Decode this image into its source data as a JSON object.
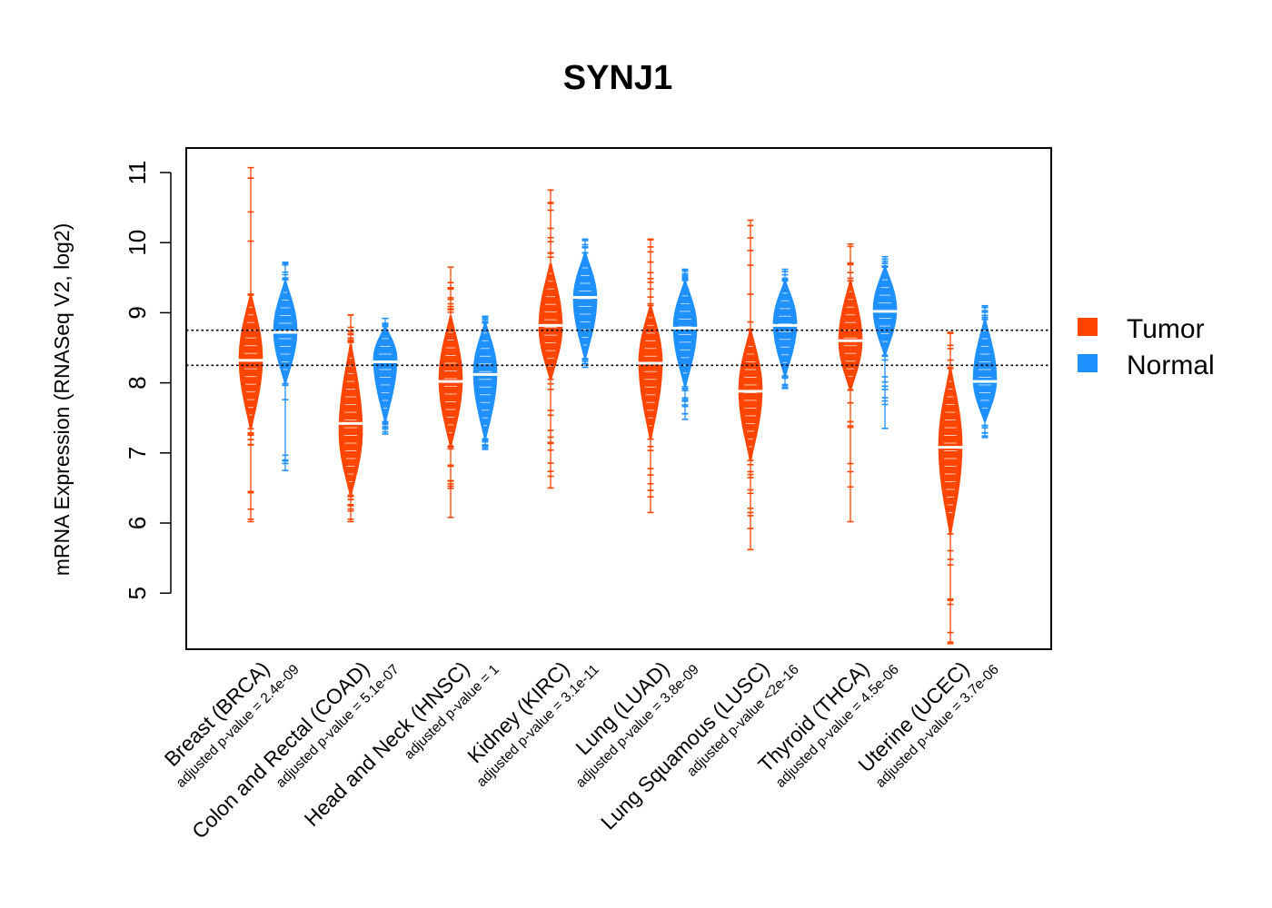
{
  "chart_data": {
    "type": "violin",
    "title": "SYNJ1",
    "ylabel": "mRNA Expression (RNASeq V2, log2)",
    "ylim": [
      4.2,
      11.35
    ],
    "yticks": [
      "5",
      "6",
      "7",
      "8",
      "9",
      "10",
      "11"
    ],
    "reference_lines": [
      8.25,
      8.75
    ],
    "colors": {
      "Tumor": "#FF4500",
      "Normal": "#1E90FF"
    },
    "legend": {
      "position": "right",
      "entries": [
        "Tumor",
        "Normal"
      ]
    },
    "categories": [
      {
        "label": "Breast (BRCA)",
        "pvalue": "adjusted p-value = 2.4e-09",
        "tumor": {
          "median": 8.32,
          "core": [
            7.35,
            9.25
          ],
          "min": 6.02,
          "max": 11.07,
          "peak": 8.35
        },
        "normal": {
          "median": 8.72,
          "core": [
            8.0,
            9.45
          ],
          "min": 6.75,
          "max": 9.72,
          "peak": 8.75
        }
      },
      {
        "label": "Colon and Rectal (COAD)",
        "pvalue": "adjusted p-value = 5.1e-07",
        "tumor": {
          "median": 7.42,
          "core": [
            6.4,
            8.55
          ],
          "min": 6.02,
          "max": 8.97,
          "peak": 7.3
        },
        "normal": {
          "median": 8.3,
          "core": [
            7.45,
            8.8
          ],
          "min": 7.27,
          "max": 8.92,
          "peak": 8.35
        }
      },
      {
        "label": "Head and Neck (HNSC)",
        "pvalue": "adjusted p-value = 1",
        "tumor": {
          "median": 8.02,
          "core": [
            7.1,
            8.95
          ],
          "min": 6.08,
          "max": 9.65,
          "peak": 8.05
        },
        "normal": {
          "median": 8.12,
          "core": [
            7.2,
            8.85
          ],
          "min": 7.05,
          "max": 8.95,
          "peak": 8.15
        }
      },
      {
        "label": "Kidney (KIRC)",
        "pvalue": "adjusted p-value = 3.1e-11",
        "tumor": {
          "median": 8.82,
          "core": [
            8.05,
            9.7
          ],
          "min": 6.5,
          "max": 10.75,
          "peak": 8.8
        },
        "normal": {
          "median": 9.22,
          "core": [
            8.35,
            9.85
          ],
          "min": 8.22,
          "max": 10.05,
          "peak": 9.2
        }
      },
      {
        "label": "Lung (LUAD)",
        "pvalue": "adjusted p-value = 3.8e-09",
        "tumor": {
          "median": 8.28,
          "core": [
            7.2,
            9.1
          ],
          "min": 6.15,
          "max": 10.05,
          "peak": 8.3
        },
        "normal": {
          "median": 8.78,
          "core": [
            7.95,
            9.45
          ],
          "min": 7.48,
          "max": 9.62,
          "peak": 8.8
        }
      },
      {
        "label": "Lung Squamous (LUSC)",
        "pvalue": "adjusted p-value <2e-16",
        "tumor": {
          "median": 7.88,
          "core": [
            6.9,
            8.75
          ],
          "min": 5.62,
          "max": 10.32,
          "peak": 7.9
        },
        "normal": {
          "median": 8.82,
          "core": [
            8.1,
            9.45
          ],
          "min": 7.92,
          "max": 9.62,
          "peak": 8.85
        }
      },
      {
        "label": "Thyroid (THCA)",
        "pvalue": "adjusted p-value = 4.5e-06",
        "tumor": {
          "median": 8.6,
          "core": [
            7.9,
            9.45
          ],
          "min": 6.02,
          "max": 9.98,
          "peak": 8.6
        },
        "normal": {
          "median": 9.02,
          "core": [
            8.4,
            9.65
          ],
          "min": 7.35,
          "max": 9.8,
          "peak": 9.05
        }
      },
      {
        "label": "Uterine (UCEC)",
        "pvalue": "adjusted p-value = 3.7e-06",
        "tumor": {
          "median": 7.08,
          "core": [
            5.85,
            8.2
          ],
          "min": 4.28,
          "max": 8.72,
          "peak": 7.1
        },
        "normal": {
          "median": 8.02,
          "core": [
            7.45,
            8.9
          ],
          "min": 7.22,
          "max": 9.1,
          "peak": 8.05
        }
      }
    ]
  }
}
